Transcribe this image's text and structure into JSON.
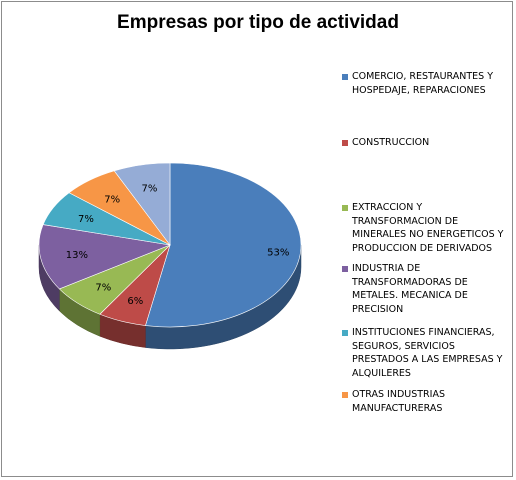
{
  "chart_data": {
    "type": "pie",
    "title": "Empresas por tipo de actividad",
    "categories": [
      "COMERCIO, RESTAURANTES Y HOSPEDAJE, REPARACIONES",
      "CONSTRUCCION",
      "EXTRACCION Y TRANSFORMACION DE MINERALES NO ENERGETICOS Y PRODUCCION DE DERIVADOS",
      "INDUSTRIA DE TRANSFORMADORAS DE METALES. MECANICA DE PRECISION",
      "INSTITUCIONES FINANCIERAS, SEGUROS, SERVICIOS PRESTADOS A LAS EMPRESAS Y ALQUILERES",
      "OTRAS INDUSTRIAS MANUFACTURERAS",
      ""
    ],
    "values": [
      53,
      6,
      7,
      13,
      7,
      7,
      7
    ],
    "data_labels": [
      "53%",
      "6%",
      "7%",
      "13%",
      "7%",
      "7%",
      "7%"
    ],
    "colors": [
      "#4a7ebb",
      "#be4b48",
      "#98b954",
      "#7d60a0",
      "#46aac4",
      "#f79646",
      "#95acd6"
    ],
    "legend_position": "right",
    "legend_lines": [
      [
        "COMERCIO, RESTAURANTES Y",
        "HOSPEDAJE, REPARACIONES"
      ],
      [
        "CONSTRUCCION"
      ],
      [
        "EXTRACCION Y",
        "TRANSFORMACION DE",
        "MINERALES NO ENERGETICOS Y",
        "PRODUCCION DE DERIVADOS"
      ],
      [
        "INDUSTRIA DE",
        "TRANSFORMADORAS DE",
        "METALES. MECANICA DE",
        "PRECISION"
      ],
      [
        "INSTITUCIONES FINANCIERAS,",
        "SEGUROS, SERVICIOS",
        "PRESTADOS A LAS EMPRESAS Y",
        "ALQUILERES"
      ],
      [
        "OTRAS INDUSTRIAS",
        "MANUFACTURERAS"
      ]
    ]
  }
}
